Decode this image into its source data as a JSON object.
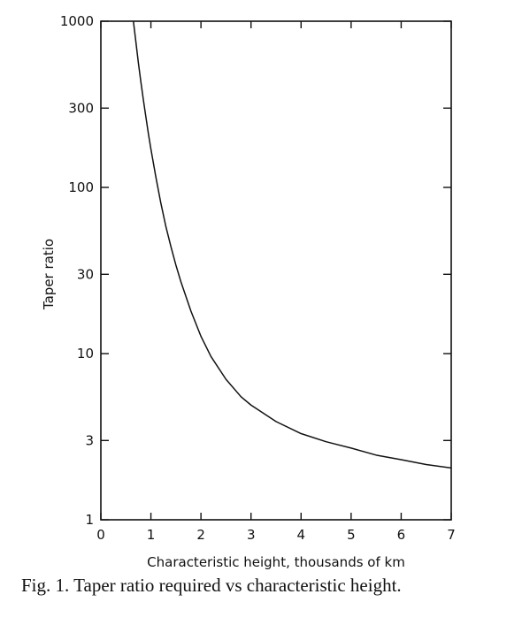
{
  "caption": "Fig. 1. Taper ratio required vs characteristic height.",
  "chart_data": {
    "type": "line",
    "xlabel": "Characteristic height,  thousands of km",
    "ylabel": "Taper ratio",
    "xscale": "linear",
    "yscale": "log",
    "xlim": [
      0,
      7
    ],
    "ylim": [
      1,
      1000
    ],
    "x_ticks": [
      "0",
      "1",
      "2",
      "3",
      "4",
      "5",
      "6",
      "7"
    ],
    "y_ticks": [
      "1",
      "3",
      "10",
      "30",
      "100",
      "300",
      "1000"
    ],
    "grid": false,
    "series": [
      {
        "x": [
          0.65,
          0.7,
          0.75,
          0.8,
          0.85,
          0.9,
          0.95,
          1.0,
          1.1,
          1.2,
          1.3,
          1.4,
          1.5,
          1.6,
          1.8,
          2.0,
          2.2,
          2.5,
          2.8,
          3.0,
          3.5,
          4.0,
          4.5,
          5.0,
          5.5,
          6.0,
          6.5,
          7.0
        ],
        "y": [
          1000,
          750,
          560,
          430,
          335,
          265,
          210,
          170,
          115,
          80,
          58,
          44,
          34,
          27,
          18,
          12.7,
          9.6,
          7.0,
          5.5,
          4.9,
          3.9,
          3.3,
          2.95,
          2.7,
          2.45,
          2.3,
          2.15,
          2.05
        ]
      }
    ]
  }
}
